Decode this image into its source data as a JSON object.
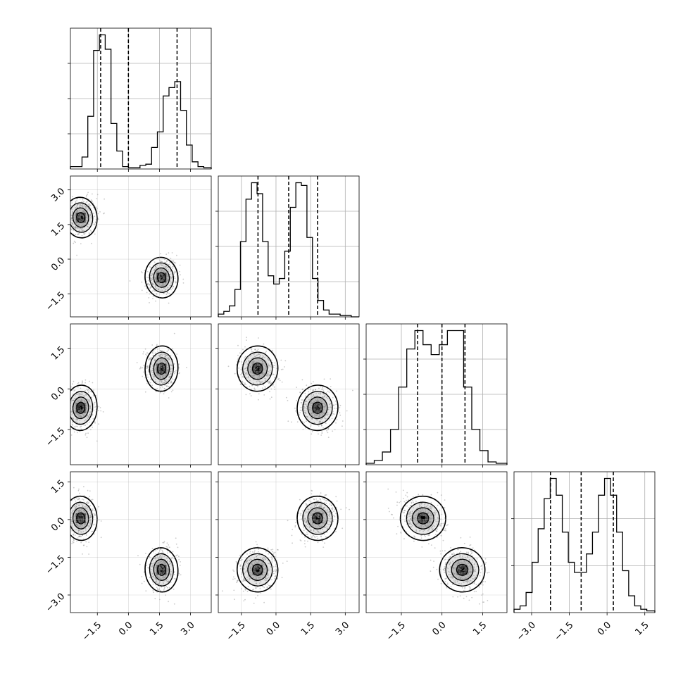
{
  "chart_data": {
    "type": "corner",
    "title": "",
    "grid": true,
    "x_ticks": [
      {
        "values": [
          -1.5,
          0.0,
          1.5,
          3.0
        ],
        "labels": [
          "−1.5",
          "0.0",
          "1.5",
          "3.0"
        ]
      },
      {
        "values": [
          -1.5,
          0.0,
          1.5,
          3.0
        ],
        "labels": [
          "−1.5",
          "0.0",
          "1.5",
          "3.0"
        ]
      },
      {
        "values": [
          -1.5,
          0.0,
          1.5
        ],
        "labels": [
          "−1.5",
          "0.0",
          "1.5"
        ]
      },
      {
        "values": [
          -3.0,
          -1.5,
          0.0,
          1.5
        ],
        "labels": [
          "−3.0",
          "−1.5",
          "0.0",
          "1.5"
        ]
      }
    ],
    "y_ticks": [
      null,
      {
        "values": [
          -1.5,
          0.0,
          1.5,
          3.0
        ],
        "labels": [
          "−1.5",
          "0.0",
          "1.5",
          "3.0"
        ]
      },
      {
        "values": [
          -1.5,
          0.0,
          1.5
        ],
        "labels": [
          "−1.5",
          "0.0",
          "1.5"
        ]
      },
      {
        "values": [
          -3.0,
          -1.5,
          0.0,
          1.5
        ],
        "labels": [
          "−3.0",
          "−1.5",
          "0.0",
          "1.5"
        ]
      }
    ],
    "ranges": [
      [
        -2.8,
        4.0
      ],
      [
        -2.5,
        3.6
      ],
      [
        -2.8,
        2.4
      ],
      [
        -3.7,
        1.9
      ]
    ],
    "histograms": [
      {
        "quantiles": [
          -1.34,
          0.0,
          2.35
        ],
        "bins": [
          -2.8,
          -2.52,
          -2.24,
          -1.96,
          -1.68,
          -1.4,
          -1.12,
          -0.84,
          -0.56,
          -0.28,
          0.0,
          0.28,
          0.56,
          0.84,
          1.12,
          1.4,
          1.68,
          1.96,
          2.24,
          2.52,
          2.8,
          3.08,
          3.36,
          3.64,
          4.0
        ],
        "counts": [
          2,
          2,
          10,
          44,
          99,
          112,
          100,
          38,
          15,
          2,
          1,
          1,
          3,
          4,
          18,
          31,
          61,
          68,
          73,
          49,
          20,
          6,
          2,
          1
        ]
      },
      {
        "quantiles": [
          -0.78,
          0.55,
          1.8
        ],
        "bins": [
          -2.5,
          -2.26,
          -2.02,
          -1.78,
          -1.54,
          -1.3,
          -1.06,
          -0.82,
          -0.58,
          -0.34,
          -0.1,
          0.14,
          0.38,
          0.62,
          0.86,
          1.1,
          1.34,
          1.58,
          1.82,
          2.06,
          2.3,
          2.54,
          2.78,
          3.02,
          3.26,
          3.6
        ],
        "counts": [
          2,
          4,
          8,
          20,
          55,
          86,
          98,
          90,
          55,
          30,
          24,
          28,
          48,
          80,
          98,
          96,
          58,
          28,
          12,
          5,
          2,
          2,
          1,
          1,
          0
        ]
      },
      {
        "quantiles": [
          -0.9,
          0.0,
          0.85
        ],
        "bins": [
          -2.8,
          -2.5,
          -2.2,
          -1.9,
          -1.6,
          -1.3,
          -1.0,
          -0.7,
          -0.4,
          -0.1,
          0.2,
          0.5,
          0.8,
          1.1,
          1.4,
          1.7,
          2.0,
          2.4
        ],
        "counts": [
          1,
          3,
          9,
          25,
          55,
          82,
          95,
          85,
          78,
          85,
          95,
          95,
          55,
          25,
          10,
          2,
          1
        ]
      },
      {
        "quantiles": [
          -2.25,
          -1.03,
          0.25
        ],
        "bins": [
          -3.7,
          -3.46,
          -3.22,
          -2.98,
          -2.74,
          -2.5,
          -2.26,
          -2.02,
          -1.78,
          -1.54,
          -1.3,
          -1.06,
          -0.82,
          -0.58,
          -0.34,
          -0.1,
          0.14,
          0.38,
          0.62,
          0.86,
          1.1,
          1.34,
          1.58,
          1.9
        ],
        "counts": [
          2,
          4,
          12,
          30,
          50,
          68,
          80,
          70,
          48,
          30,
          24,
          24,
          35,
          48,
          70,
          80,
          70,
          48,
          25,
          10,
          4,
          2,
          1
        ]
      }
    ],
    "modes": [
      [
        1.6,
        -0.8,
        0.75,
        -2.0
      ],
      [
        -2.3,
        1.8,
        -0.7,
        0.05
      ]
    ],
    "mode_sigma": [
      0.36,
      0.4,
      0.38,
      0.4
    ],
    "correlations": {
      "1-0": 0.2,
      "2-0": -0.1,
      "2-1": -0.15,
      "3-0": 0.1,
      "3-1": 0.15,
      "3-2": -0.2
    },
    "colors": {
      "line": "#000000",
      "points": "#8a8a8a",
      "grid": "#b0b0b0"
    }
  }
}
